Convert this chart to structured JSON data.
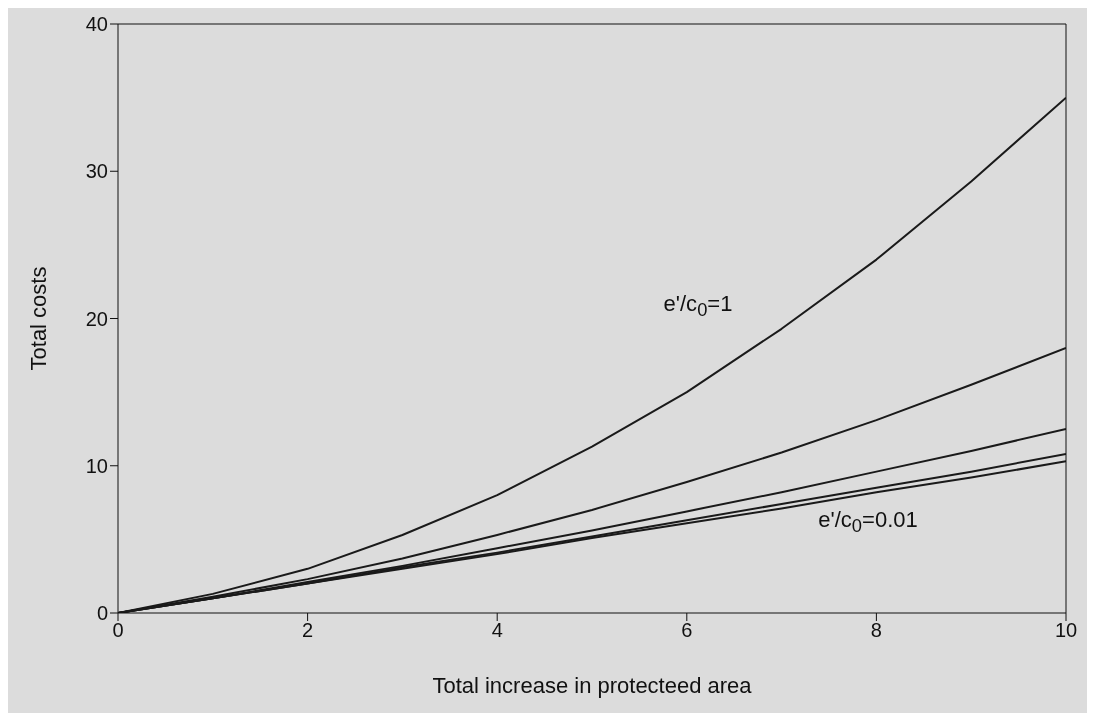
{
  "chart_data": {
    "type": "line",
    "xlabel": "Total increase in protecteed area",
    "ylabel": "Total costs",
    "x": [
      0,
      1,
      2,
      3,
      4,
      5,
      6,
      7,
      8,
      9,
      10
    ],
    "series": [
      {
        "color": "#1a1a1a",
        "values": [
          0,
          1.3,
          3.0,
          5.3,
          8.0,
          11.3,
          15.0,
          19.3,
          24.0,
          29.3,
          35.0
        ]
      },
      {
        "color": "#1a1a1a",
        "values": [
          0,
          1.1,
          2.3,
          3.7,
          5.3,
          7.0,
          8.9,
          10.9,
          13.1,
          15.5,
          18.0
        ]
      },
      {
        "color": "#1a1a1a",
        "values": [
          0,
          1.0,
          2.1,
          3.2,
          4.4,
          5.6,
          6.9,
          8.2,
          9.6,
          11.0,
          12.5
        ]
      },
      {
        "color": "#1a1a1a",
        "values": [
          0,
          1.0,
          2.0,
          3.1,
          4.1,
          5.2,
          6.3,
          7.4,
          8.5,
          9.6,
          10.8
        ]
      },
      {
        "color": "#1a1a1a",
        "values": [
          0,
          1.0,
          2.0,
          3.0,
          4.0,
          5.1,
          6.1,
          7.1,
          8.2,
          9.2,
          10.3
        ]
      }
    ],
    "annotations": [
      "e'/c$_{0}$=1",
      "e'/c$_{0}$=0.01"
    ],
    "xlim": [
      0,
      10
    ],
    "xticks": [
      0,
      2,
      4,
      6,
      8,
      10
    ],
    "ylim": [
      0,
      40
    ],
    "yticks": [
      0,
      10,
      20,
      30,
      40
    ],
    "grid": false,
    "legend": false,
    "marker": "none",
    "line_style": "solid"
  }
}
